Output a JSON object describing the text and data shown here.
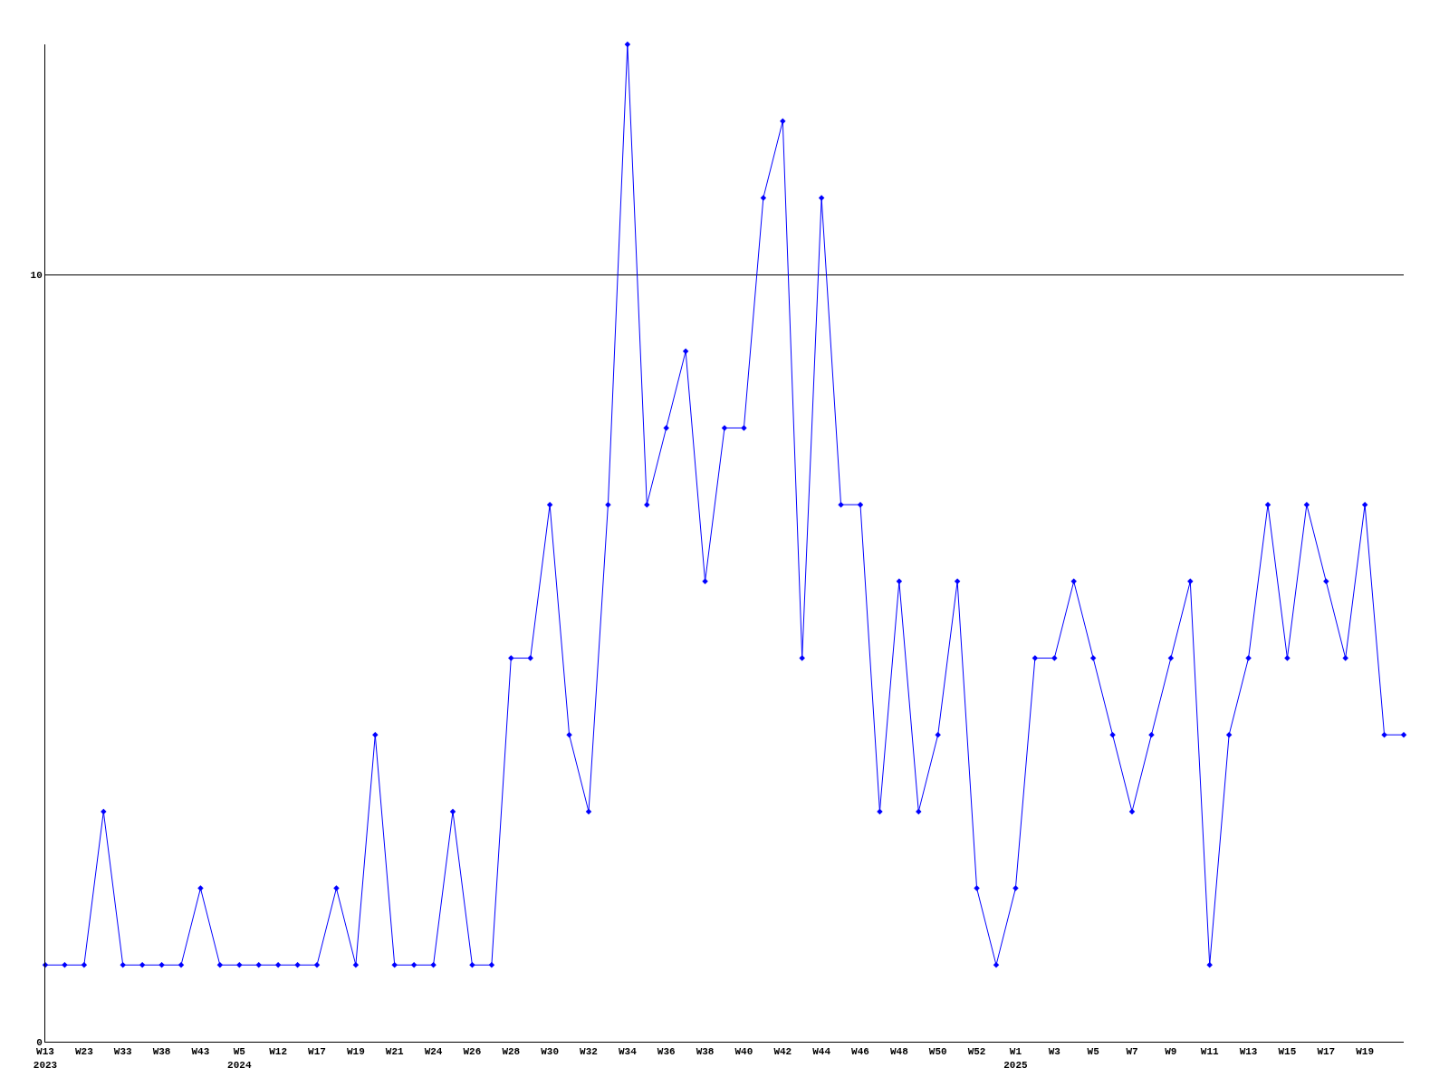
{
  "chart_data": {
    "type": "line",
    "categories": [
      "W13\n2023",
      null,
      "W23",
      null,
      "W33",
      null,
      "W38",
      null,
      "W43",
      null,
      "W5\n2024",
      null,
      "W12",
      null,
      "W17",
      null,
      "W19",
      null,
      "W21",
      null,
      "W24",
      null,
      "W26",
      null,
      "W28",
      null,
      "W30",
      null,
      "W32",
      null,
      "W34",
      null,
      "W36",
      null,
      "W38",
      null,
      "W40",
      null,
      "W42",
      null,
      "W44",
      null,
      "W46",
      null,
      "W48",
      null,
      "W50",
      null,
      "W52",
      null,
      "W1\n2025",
      null,
      "W3",
      null,
      "W5",
      null,
      "W7",
      null,
      "W9",
      null,
      "W11",
      null,
      "W13",
      null,
      "W15",
      null,
      "W17",
      null,
      "W19",
      null,
      null
    ],
    "series": [
      {
        "color": "#0000ff",
        "values": [
          1,
          1,
          1,
          3,
          1,
          1,
          1,
          1,
          2,
          1,
          1,
          1,
          1,
          1,
          1,
          2,
          1,
          4,
          1,
          1,
          1,
          3,
          1,
          1,
          5,
          5,
          7,
          4,
          3,
          7,
          13,
          7,
          8,
          9,
          6,
          8,
          8,
          11,
          12,
          5,
          11,
          7,
          7,
          3,
          6,
          3,
          4,
          6,
          2,
          1,
          2,
          5,
          5,
          6,
          5,
          4,
          3,
          4,
          5,
          6,
          1,
          4,
          5,
          7,
          5,
          7,
          6,
          5,
          7,
          4,
          4
        ]
      }
    ],
    "ylim": [
      0,
      13
    ],
    "yticks": [
      0,
      10
    ],
    "grid": "y",
    "legend": false,
    "marker": "diamond",
    "line_style": "solid"
  }
}
